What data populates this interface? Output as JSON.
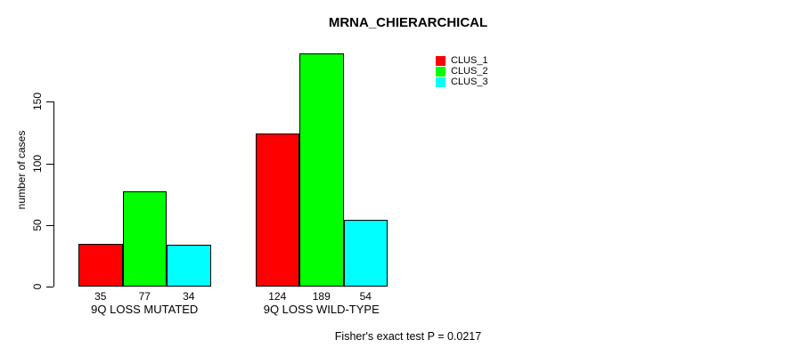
{
  "chart_data": {
    "type": "bar",
    "title": "MRNA_CHIERARCHICAL",
    "ylabel": "number of cases",
    "xlabel": "",
    "categories": [
      "9Q LOSS MUTATED",
      "9Q LOSS WILD-TYPE"
    ],
    "series": [
      {
        "name": "CLUS_1",
        "color": "#ff0000",
        "values": [
          35,
          124
        ]
      },
      {
        "name": "CLUS_2",
        "color": "#00ff00",
        "values": [
          77,
          189
        ]
      },
      {
        "name": "CLUS_3",
        "color": "#00ffff",
        "values": [
          34,
          54
        ]
      }
    ],
    "bar_value_labels": [
      [
        35,
        77,
        34
      ],
      [
        124,
        189,
        54
      ]
    ],
    "yticks": [
      0,
      50,
      100,
      150
    ],
    "ylim": [
      0,
      195
    ],
    "grid": false,
    "legend_position": "right",
    "legend_entries": [
      "CLUS_1",
      "CLUS_2",
      "CLUS_3"
    ],
    "annotation": "Fisher's exact test P = 0.0217",
    "colors": {
      "background": "#ffffff",
      "axis": "#000000",
      "text": "#000000",
      "clus_1": "#ff0000",
      "clus_2": "#00ff00",
      "clus_3": "#00ffff"
    }
  }
}
